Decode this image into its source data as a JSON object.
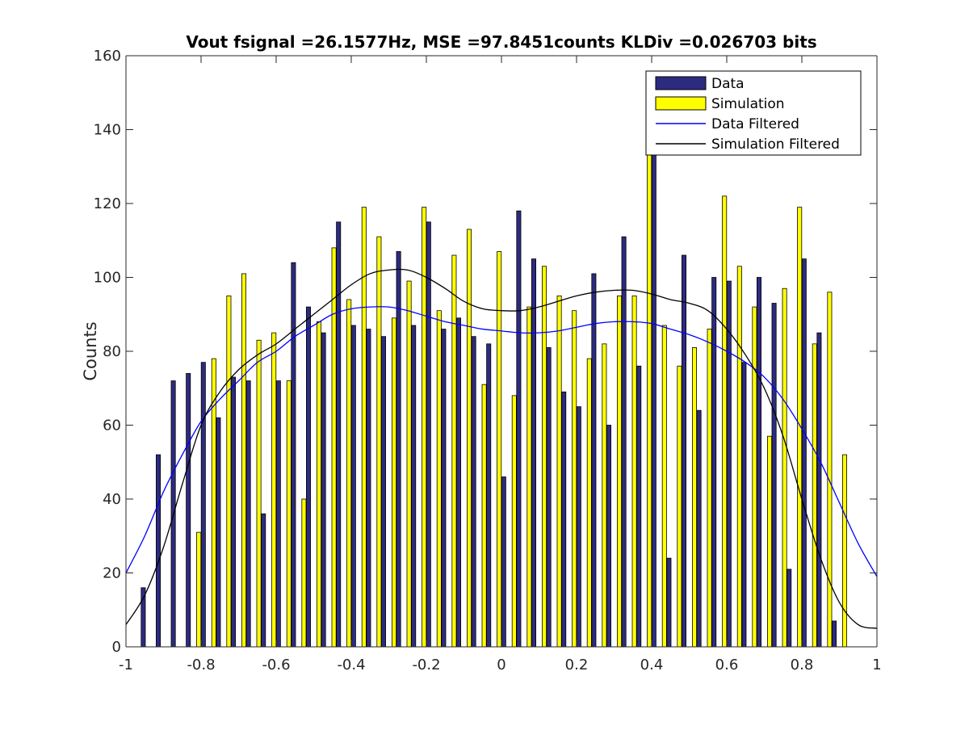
{
  "chart_data": {
    "type": "bar",
    "title": "Vout fsignal =26.1577Hz, MSE =97.8451counts KLDiv =0.026703 bits",
    "xlabel": "",
    "ylabel": "Counts",
    "xlim": [
      -1,
      1
    ],
    "ylim": [
      0,
      160
    ],
    "xticks": [
      -1,
      -0.8,
      -0.6,
      -0.4,
      -0.2,
      0,
      0.2,
      0.4,
      0.6,
      0.8,
      1
    ],
    "xtick_labels": [
      "-1",
      "-0.8",
      "-0.6",
      "-0.4",
      "-0.2",
      "0",
      "0.2",
      "0.4",
      "0.6",
      "0.8",
      "1"
    ],
    "yticks": [
      0,
      20,
      40,
      60,
      80,
      100,
      120,
      140,
      160
    ],
    "ytick_labels": [
      "0",
      "20",
      "40",
      "60",
      "80",
      "100",
      "120",
      "140",
      "160"
    ],
    "grid": false,
    "legend": {
      "placement": "top-right",
      "entries": [
        "Data",
        "Simulation",
        "Data Filtered",
        "Simulation Filtered"
      ]
    },
    "x": [
      -0.94,
      -0.9,
      -0.86,
      -0.82,
      -0.78,
      -0.74,
      -0.7,
      -0.66,
      -0.62,
      -0.58,
      -0.54,
      -0.5,
      -0.46,
      -0.42,
      -0.38,
      -0.34,
      -0.3,
      -0.26,
      -0.22,
      -0.18,
      -0.14,
      -0.1,
      -0.06,
      -0.02,
      0.02,
      0.06,
      0.1,
      0.14,
      0.18,
      0.22,
      0.26,
      0.3,
      0.34,
      0.38,
      0.42,
      0.46,
      0.5,
      0.54,
      0.58,
      0.62,
      0.66,
      0.7,
      0.74,
      0.78,
      0.82,
      0.86,
      0.9,
      0.94
    ],
    "series": [
      {
        "name": "Data",
        "kind": "bar",
        "color": "#2d2b7f",
        "values": [
          16,
          52,
          72,
          74,
          77,
          62,
          73,
          72,
          36,
          72,
          104,
          92,
          85,
          115,
          87,
          86,
          84,
          107,
          87,
          115,
          86,
          89,
          84,
          82,
          46,
          118,
          105,
          81,
          69,
          65,
          101,
          60,
          111,
          76,
          153,
          24,
          106,
          64,
          100,
          99,
          77,
          100,
          93,
          21,
          105,
          85,
          7,
          0
        ]
      },
      {
        "name": "Simulation",
        "kind": "bar",
        "color": "#ffff00",
        "values": [
          0,
          0,
          0,
          31,
          78,
          95,
          101,
          83,
          85,
          72,
          40,
          88,
          108,
          94,
          119,
          111,
          89,
          99,
          119,
          91,
          106,
          113,
          71,
          107,
          68,
          92,
          103,
          95,
          91,
          78,
          82,
          95,
          95,
          147,
          87,
          76,
          81,
          86,
          122,
          103,
          92,
          57,
          97,
          119,
          82,
          96,
          52,
          0
        ]
      },
      {
        "name": "Data Filtered",
        "kind": "line",
        "color": "#0000ff",
        "x": [
          -1,
          -0.95,
          -0.9,
          -0.85,
          -0.8,
          -0.75,
          -0.7,
          -0.65,
          -0.6,
          -0.55,
          -0.5,
          -0.45,
          -0.4,
          -0.35,
          -0.3,
          -0.25,
          -0.2,
          -0.15,
          -0.1,
          -0.05,
          0,
          0.05,
          0.1,
          0.15,
          0.2,
          0.25,
          0.3,
          0.35,
          0.4,
          0.45,
          0.5,
          0.55,
          0.6,
          0.65,
          0.7,
          0.75,
          0.8,
          0.85,
          0.9,
          0.95,
          1
        ],
        "values": [
          20,
          30,
          42,
          52,
          61,
          67,
          72,
          77,
          80,
          84,
          87,
          90,
          91.5,
          92,
          92,
          91,
          89.5,
          88,
          87,
          86,
          85.5,
          85,
          85,
          85.5,
          86.5,
          87.5,
          88,
          88,
          87.5,
          86,
          84.5,
          82.5,
          80,
          77,
          73,
          67,
          59,
          50,
          39,
          28,
          19
        ]
      },
      {
        "name": "Simulation Filtered",
        "kind": "line",
        "color": "#000000",
        "x": [
          -1,
          -0.95,
          -0.9,
          -0.85,
          -0.8,
          -0.75,
          -0.7,
          -0.65,
          -0.6,
          -0.55,
          -0.5,
          -0.45,
          -0.4,
          -0.35,
          -0.3,
          -0.25,
          -0.2,
          -0.15,
          -0.1,
          -0.05,
          0,
          0.05,
          0.1,
          0.15,
          0.2,
          0.25,
          0.3,
          0.35,
          0.4,
          0.45,
          0.5,
          0.55,
          0.6,
          0.65,
          0.7,
          0.75,
          0.8,
          0.85,
          0.9,
          0.95,
          1
        ],
        "values": [
          6,
          14,
          27,
          44,
          60,
          69,
          75,
          79,
          82,
          86,
          90,
          94,
          98,
          101,
          102,
          102,
          100,
          97,
          93.5,
          91.5,
          91,
          91,
          92,
          93.5,
          95,
          96,
          96.5,
          96.5,
          95.5,
          94,
          93,
          91,
          86,
          79,
          70,
          57,
          40,
          24,
          12,
          6,
          5
        ]
      }
    ]
  }
}
